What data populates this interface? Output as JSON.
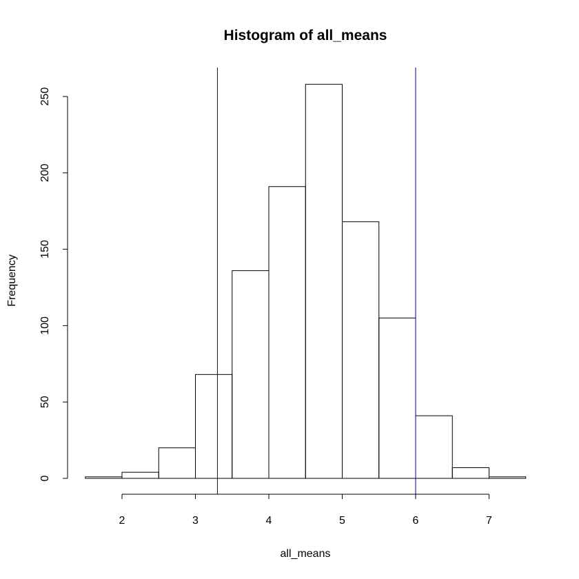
{
  "chart_data": {
    "type": "bar",
    "title": "Histogram of all_means",
    "xlabel": "all_means",
    "ylabel": "Frequency",
    "bins": [
      {
        "x0": 1.5,
        "x1": 2.0,
        "count": 1
      },
      {
        "x0": 2.0,
        "x1": 2.5,
        "count": 4
      },
      {
        "x0": 2.5,
        "x1": 3.0,
        "count": 20
      },
      {
        "x0": 3.0,
        "x1": 3.5,
        "count": 68
      },
      {
        "x0": 3.5,
        "x1": 4.0,
        "count": 136
      },
      {
        "x0": 4.0,
        "x1": 4.5,
        "count": 191
      },
      {
        "x0": 4.5,
        "x1": 5.0,
        "count": 258
      },
      {
        "x0": 5.0,
        "x1": 5.5,
        "count": 168
      },
      {
        "x0": 5.5,
        "x1": 6.0,
        "count": 105
      },
      {
        "x0": 6.0,
        "x1": 6.5,
        "count": 41
      },
      {
        "x0": 6.5,
        "x1": 7.0,
        "count": 7
      },
      {
        "x0": 7.0,
        "x1": 7.5,
        "count": 1
      }
    ],
    "xticks": [
      2,
      3,
      4,
      5,
      6,
      7
    ],
    "yticks": [
      0,
      50,
      100,
      150,
      200,
      250
    ],
    "xlim": [
      1.5,
      7.5
    ],
    "ylim": [
      0,
      258
    ],
    "vlines": [
      3.3,
      6.0
    ],
    "vline_color": "#00008B",
    "grid": false,
    "legend": "none"
  }
}
